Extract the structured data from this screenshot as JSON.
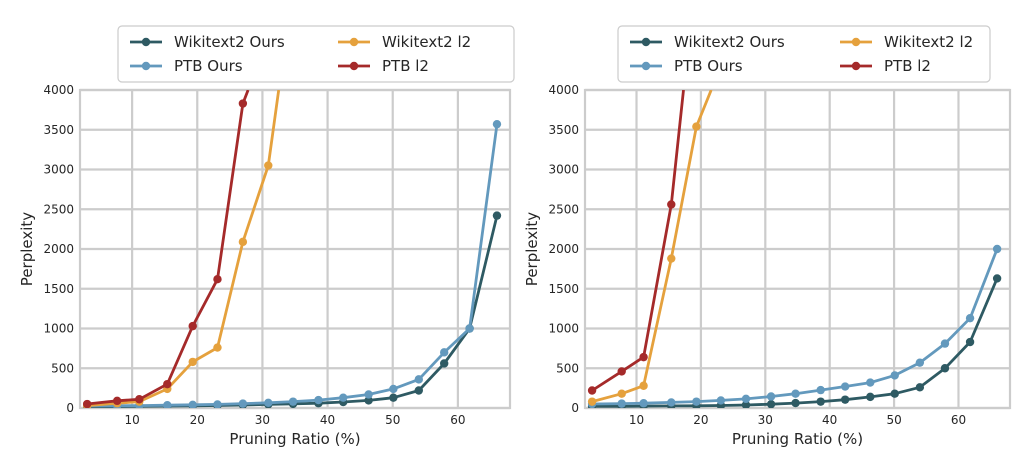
{
  "chart_data": [
    {
      "type": "line",
      "title": "",
      "xlabel": "Pruning Ratio (%)",
      "ylabel": "Perplexity",
      "xlim": [
        2,
        68
      ],
      "ylim": [
        0,
        4000
      ],
      "xticks": [
        10,
        20,
        30,
        40,
        50,
        60
      ],
      "yticks": [
        0,
        500,
        1000,
        1500,
        2000,
        2500,
        3000,
        3500,
        4000
      ],
      "grid": true,
      "legend_position": "top-center",
      "series": [
        {
          "name": "Wikitext2 Ours",
          "color": "#2e5a63",
          "marker": "circle",
          "x": [
            3.1,
            7.7,
            11.1,
            15.4,
            19.3,
            23.1,
            27.0,
            30.9,
            34.7,
            38.6,
            42.4,
            46.3,
            50.1,
            54.0,
            57.9,
            61.8,
            66.0
          ],
          "y": [
            15,
            18,
            20,
            24,
            28,
            32,
            38,
            45,
            52,
            60,
            75,
            95,
            130,
            220,
            560,
            1000,
            2420
          ]
        },
        {
          "name": "PTB Ours",
          "color": "#6399bd",
          "marker": "circle",
          "x": [
            3.1,
            7.7,
            11.1,
            15.4,
            19.3,
            23.1,
            27.0,
            30.9,
            34.7,
            38.6,
            42.4,
            46.3,
            50.1,
            54.0,
            57.9,
            61.8,
            66.0
          ],
          "y": [
            25,
            28,
            30,
            35,
            40,
            45,
            55,
            65,
            80,
            100,
            130,
            170,
            240,
            360,
            700,
            1000,
            3570
          ]
        },
        {
          "name": "Wikitext2 l2",
          "color": "#e5a13d",
          "marker": "circle",
          "x": [
            3.1,
            7.7,
            11.1,
            15.4,
            19.3,
            23.1,
            27.0,
            30.9,
            32.5
          ],
          "y": [
            30,
            60,
            80,
            240,
            580,
            760,
            2090,
            3050,
            4000
          ]
        },
        {
          "name": "PTB l2",
          "color": "#a52a2a",
          "marker": "circle",
          "x": [
            3.1,
            7.7,
            11.1,
            15.4,
            19.3,
            23.1,
            27.0,
            27.8
          ],
          "y": [
            50,
            90,
            110,
            300,
            1030,
            1620,
            3830,
            4000
          ]
        }
      ]
    },
    {
      "type": "line",
      "title": "",
      "xlabel": "Pruning Ratio (%)",
      "ylabel": "Perplexity",
      "xlim": [
        2,
        68
      ],
      "ylim": [
        0,
        4000
      ],
      "xticks": [
        10,
        20,
        30,
        40,
        50,
        60
      ],
      "yticks": [
        0,
        500,
        1000,
        1500,
        2000,
        2500,
        3000,
        3500,
        4000
      ],
      "grid": true,
      "legend_position": "top-center",
      "series": [
        {
          "name": "Wikitext2 Ours",
          "color": "#2e5a63",
          "marker": "circle",
          "x": [
            3.1,
            7.7,
            11.1,
            15.4,
            19.3,
            23.1,
            27.0,
            30.9,
            34.7,
            38.6,
            42.4,
            46.3,
            50.1,
            54.0,
            57.9,
            61.8,
            66.0
          ],
          "y": [
            20,
            22,
            24,
            26,
            28,
            32,
            38,
            48,
            62,
            80,
            105,
            140,
            180,
            260,
            500,
            830,
            1630
          ]
        },
        {
          "name": "PTB Ours",
          "color": "#6399bd",
          "marker": "circle",
          "x": [
            3.1,
            7.7,
            11.1,
            15.4,
            19.3,
            23.1,
            27.0,
            30.9,
            34.7,
            38.6,
            42.4,
            46.3,
            50.1,
            54.0,
            57.9,
            61.8,
            66.0
          ],
          "y": [
            50,
            55,
            60,
            70,
            80,
            95,
            115,
            145,
            180,
            225,
            270,
            320,
            410,
            570,
            810,
            1130,
            2000
          ]
        },
        {
          "name": "Wikitext2 l2",
          "color": "#e5a13d",
          "marker": "circle",
          "x": [
            3.1,
            7.7,
            11.1,
            15.4,
            19.3,
            21.6
          ],
          "y": [
            80,
            180,
            280,
            1880,
            3540,
            4000
          ]
        },
        {
          "name": "PTB l2",
          "color": "#a52a2a",
          "marker": "circle",
          "x": [
            3.1,
            7.7,
            11.1,
            15.4,
            17.3
          ],
          "y": [
            220,
            460,
            640,
            2560,
            4000
          ]
        }
      ]
    }
  ]
}
